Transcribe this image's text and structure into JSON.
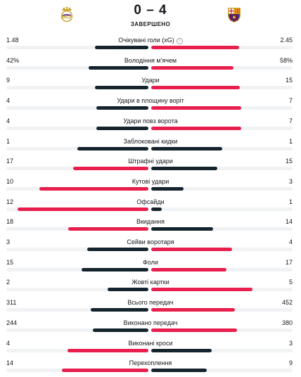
{
  "match": {
    "score": "0 – 4",
    "status": "ЗАВЕРШЕНО",
    "home_logo_icon": "real-madrid-crest-icon",
    "away_logo_icon": "barcelona-crest-icon"
  },
  "colors": {
    "leader": "#e81e4d",
    "trailer": "#15232d",
    "track": "#f1f2f4"
  },
  "stats": [
    {
      "label": "Очікувані голи (xG)",
      "home": "1.48",
      "away": "2.45",
      "home_share": 0.377,
      "away_share": 0.623,
      "info_icon": "ⓘ"
    },
    {
      "label": "Володіння м'ячем",
      "home": "42%",
      "away": "58%",
      "home_share": 0.42,
      "away_share": 0.58
    },
    {
      "label": "Удари",
      "home": "9",
      "away": "15",
      "home_share": 0.375,
      "away_share": 0.625
    },
    {
      "label": "Удари в площину воріт",
      "home": "4",
      "away": "7",
      "home_share": 0.364,
      "away_share": 0.636
    },
    {
      "label": "Удари повз ворота",
      "home": "4",
      "away": "7",
      "home_share": 0.364,
      "away_share": 0.636
    },
    {
      "label": "Заблоковані кидки",
      "home": "1",
      "away": "1",
      "home_share": 0.5,
      "away_share": 0.5
    },
    {
      "label": "Штрафні удари",
      "home": "17",
      "away": "15",
      "home_share": 0.531,
      "away_share": 0.469
    },
    {
      "label": "Кутові удари",
      "home": "10",
      "away": "3",
      "home_share": 0.769,
      "away_share": 0.231
    },
    {
      "label": "Офсайди",
      "home": "12",
      "away": "1",
      "home_share": 0.923,
      "away_share": 0.077
    },
    {
      "label": "Вкидання",
      "home": "18",
      "away": "14",
      "home_share": 0.5625,
      "away_share": 0.4375
    },
    {
      "label": "Сейви воротаря",
      "home": "3",
      "away": "4",
      "home_share": 0.429,
      "away_share": 0.571
    },
    {
      "label": "Фоли",
      "home": "15",
      "away": "17",
      "home_share": 0.469,
      "away_share": 0.531
    },
    {
      "label": "Жовті картки",
      "home": "2",
      "away": "5",
      "home_share": 0.286,
      "away_share": 0.714
    },
    {
      "label": "Всього передач",
      "home": "311",
      "away": "452",
      "home_share": 0.408,
      "away_share": 0.592
    },
    {
      "label": "Виконано передач",
      "home": "244",
      "away": "380",
      "home_share": 0.391,
      "away_share": 0.609
    },
    {
      "label": "Виконані кроси",
      "home": "4",
      "away": "3",
      "home_share": 0.571,
      "away_share": 0.429
    },
    {
      "label": "Перехоплення",
      "home": "14",
      "away": "9",
      "home_share": 0.609,
      "away_share": 0.391
    }
  ]
}
